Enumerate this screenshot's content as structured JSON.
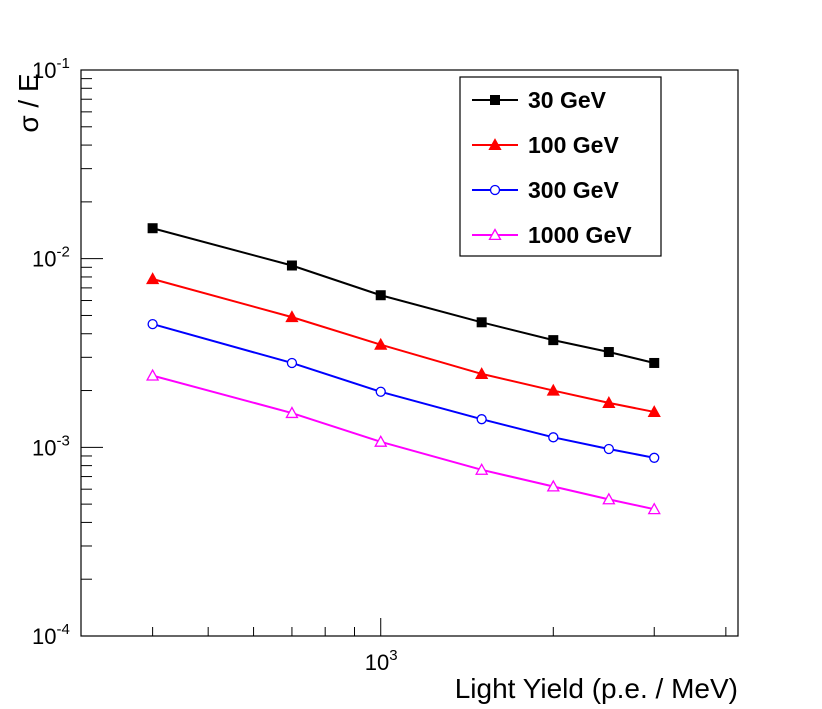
{
  "chart_data": {
    "type": "line",
    "title": "",
    "xlabel": "Light Yield (p.e. / MeV)",
    "ylabel": "σ / E",
    "x_scale": "log",
    "y_scale": "log",
    "xlim": [
      300,
      4200
    ],
    "ylim": [
      0.0001,
      0.1
    ],
    "x_tick_labels": [
      {
        "base": "10",
        "exp": "3",
        "value": 1000
      }
    ],
    "y_tick_labels": [
      {
        "base": "10",
        "exp": "-1",
        "value": 0.1
      },
      {
        "base": "10",
        "exp": "-2",
        "value": 0.01
      },
      {
        "base": "10",
        "exp": "-3",
        "value": 0.001
      },
      {
        "base": "10",
        "exp": "-4",
        "value": 0.0001
      }
    ],
    "x": [
      400,
      700,
      1000,
      1500,
      2000,
      2500,
      3000
    ],
    "series": [
      {
        "name": "30 GeV",
        "color": "#000000",
        "marker": "square-filled",
        "values": [
          0.0145,
          0.0092,
          0.0064,
          0.0046,
          0.0037,
          0.0032,
          0.0028
        ]
      },
      {
        "name": "100 GeV",
        "color": "#ff0000",
        "marker": "triangle-filled",
        "values": [
          0.0078,
          0.0049,
          0.0035,
          0.00245,
          0.002,
          0.00172,
          0.00154
        ]
      },
      {
        "name": "300 GeV",
        "color": "#0000ff",
        "marker": "circle-open",
        "values": [
          0.0045,
          0.0028,
          0.00197,
          0.00141,
          0.00113,
          0.00098,
          0.00088
        ]
      },
      {
        "name": "1000 GeV",
        "color": "#ff00ff",
        "marker": "triangle-open",
        "values": [
          0.0024,
          0.00152,
          0.00107,
          0.00076,
          0.00062,
          0.00053,
          0.00047
        ]
      }
    ],
    "legend_position": "top-right",
    "grid": false
  }
}
